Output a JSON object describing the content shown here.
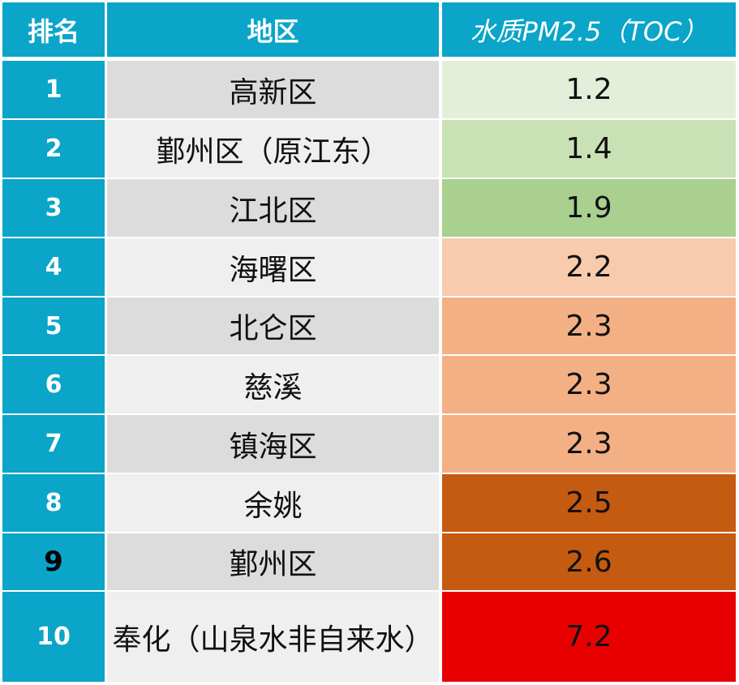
{
  "chart_data": {
    "type": "table",
    "headers": [
      "排名",
      "地区",
      "水质PM2.5（TOC）"
    ],
    "rows": [
      {
        "rank": "1",
        "region": "高新区",
        "value": "1.2",
        "color": "#e4efda"
      },
      {
        "rank": "2",
        "region": "鄞州区（原江东）",
        "value": "1.4",
        "color": "#c9e2b5"
      },
      {
        "rank": "3",
        "region": "江北区",
        "value": "1.9",
        "color": "#a9d08e"
      },
      {
        "rank": "4",
        "region": "海曙区",
        "value": "2.2",
        "color": "#f8cbad"
      },
      {
        "rank": "5",
        "region": "北仑区",
        "value": "2.3",
        "color": "#f3b084"
      },
      {
        "rank": "6",
        "region": "慈溪",
        "value": "2.3",
        "color": "#f3b084"
      },
      {
        "rank": "7",
        "region": "镇海区",
        "value": "2.3",
        "color": "#f3b084"
      },
      {
        "rank": "8",
        "region": "余姚",
        "value": "2.5",
        "color": "#c55a11"
      },
      {
        "rank": "9",
        "region": "鄞州区",
        "value": "2.6",
        "color": "#c55a11"
      },
      {
        "rank": "10",
        "region": "奉化（山泉水非自来水）",
        "value": "7.2",
        "color": "#e80000"
      }
    ]
  },
  "style": {
    "header_color": "#0aa5c8",
    "rank_color": "#0aa5c8",
    "region_row_shades": [
      "#dcdcdc",
      "#efefef"
    ]
  }
}
